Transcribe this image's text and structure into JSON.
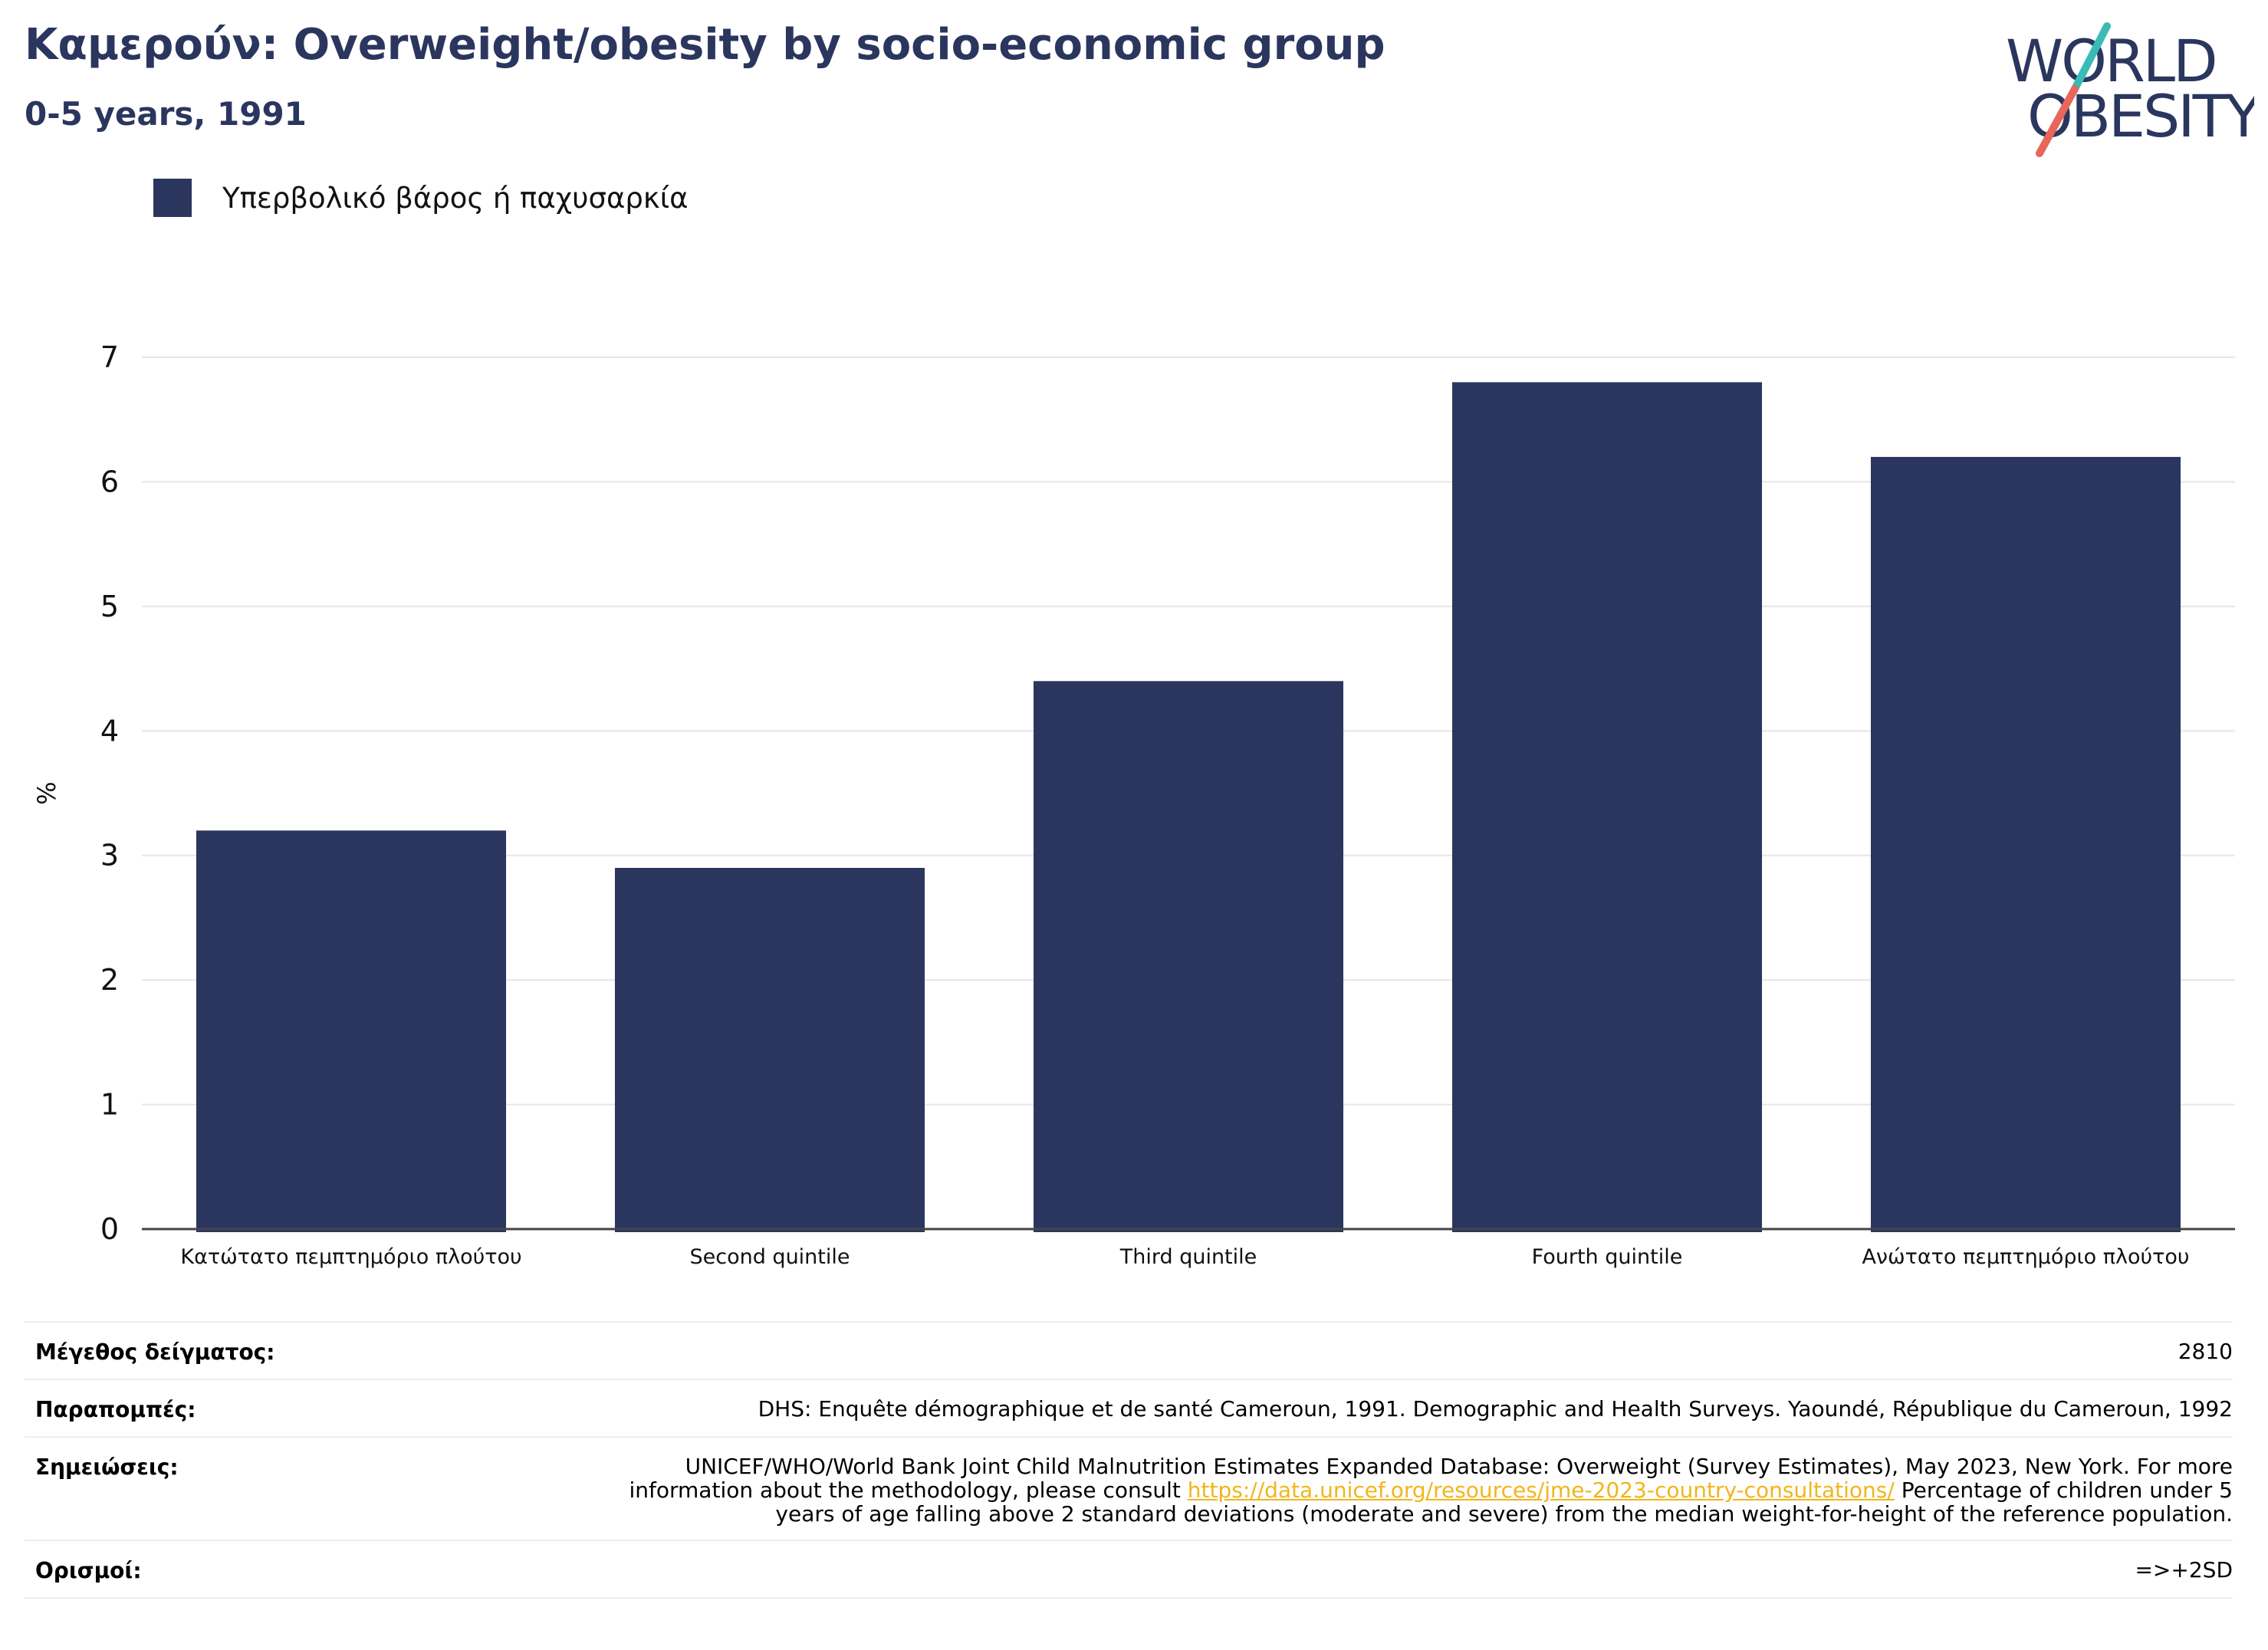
{
  "header": {
    "title": "Καμερούν: Overweight/obesity by socio-economic group",
    "subtitle": "0-5 years, 1991"
  },
  "logo": {
    "line1": "WORLD",
    "line2": "OBESITY",
    "colors": {
      "text": "#2b365f",
      "slash_top": "#3bbbb5",
      "slash_bottom": "#e8665a"
    }
  },
  "legend": {
    "placement": "top-left",
    "items": [
      {
        "label": "Υπερβολικό βάρος ή παχυσαρκία",
        "color": "#2b365f"
      }
    ]
  },
  "chart_data": {
    "type": "bar",
    "categories": [
      "Κατώτατο πεμπτημόριο πλούτου",
      "Second quintile",
      "Third quintile",
      "Fourth quintile",
      "Ανώτατο πεμπτημόριο πλούτου"
    ],
    "series": [
      {
        "name": "Υπερβολικό βάρος ή παχυσαρκία",
        "values": [
          3.2,
          2.9,
          4.4,
          6.8,
          6.2
        ],
        "color": "#2b365f"
      }
    ],
    "title": "",
    "xlabel": "",
    "ylabel": "%",
    "ylim": [
      0,
      7
    ],
    "yticks": [
      0,
      1,
      2,
      3,
      4,
      5,
      6,
      7
    ],
    "grid": true
  },
  "footer": {
    "rows": [
      {
        "label": "Μέγεθος δείγματος:",
        "value": "2810"
      },
      {
        "label": "Παραπομπές:",
        "value": "DHS: Enquête démographique et de santé Cameroun, 1991. Demographic and Health Surveys. Yaoundé, République du Cameroun, 1992"
      },
      {
        "label": "Σημειώσεις:",
        "value_before": "UNICEF/WHO/World Bank Joint Child Malnutrition Estimates Expanded Database: Overweight (Survey Estimates), May 2023, New York. For more information about the methodology, please consult",
        "link": "https://data.unicef.org/resources/jme-2023-country-consultations/",
        "value_after": "Percentage of children under 5 years of age falling above 2 standard deviations (moderate and severe) from the median weight-for-height of the reference population."
      },
      {
        "label": "Ορισμοί:",
        "value": "=>+2SD"
      }
    ]
  }
}
